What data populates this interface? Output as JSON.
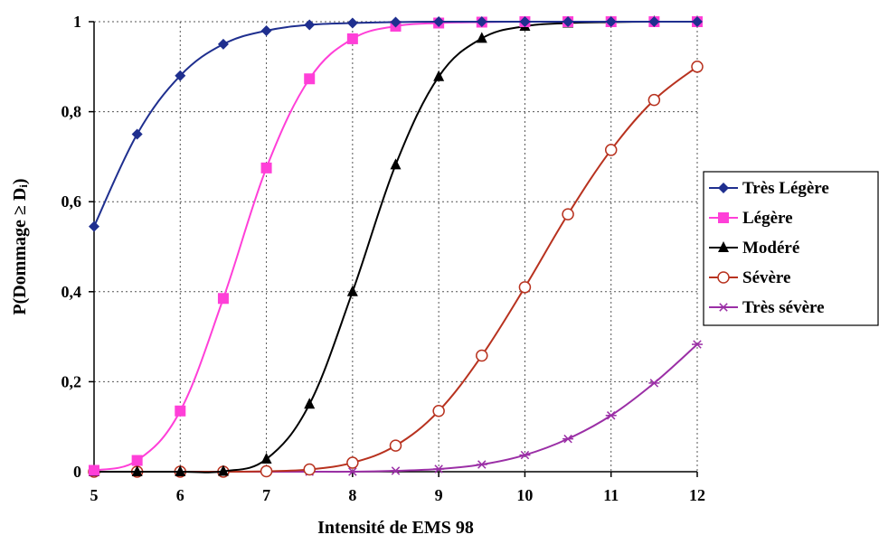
{
  "chart_data": {
    "type": "line",
    "xlabel": "Intensité de EMS 98",
    "ylabel": "P(Dommage ≥ Dᵢ)",
    "x": [
      5,
      5.5,
      6,
      6.5,
      7,
      7.5,
      8,
      8.5,
      9,
      9.5,
      10,
      10.5,
      11,
      11.5,
      12
    ],
    "xlim": [
      5,
      12
    ],
    "ylim": [
      0,
      1
    ],
    "x_ticks": [
      "5",
      "6",
      "7",
      "8",
      "9",
      "10",
      "11",
      "12"
    ],
    "y_ticks": [
      "0",
      "0,2",
      "0,4",
      "0,6",
      "0,8",
      "1"
    ],
    "grid": "dotted",
    "legend_position": "right",
    "series": [
      {
        "name": "Très Légère",
        "color": "#1f2f8f",
        "marker": "diamond",
        "values": [
          0.545,
          0.75,
          0.88,
          0.95,
          0.98,
          0.993,
          0.997,
          0.999,
          1,
          1,
          1,
          1,
          1,
          1,
          1
        ]
      },
      {
        "name": "Légère",
        "color": "#ff3fd8",
        "marker": "square",
        "values": [
          0.003,
          0.025,
          0.135,
          0.385,
          0.675,
          0.873,
          0.962,
          0.99,
          0.997,
          0.999,
          1,
          1,
          1,
          1,
          1
        ]
      },
      {
        "name": "Modéré",
        "color": "#000000",
        "marker": "triangle",
        "values": [
          0,
          0,
          0,
          0.001,
          0.028,
          0.15,
          0.4,
          0.682,
          0.878,
          0.963,
          0.99,
          0.997,
          0.999,
          1,
          1
        ]
      },
      {
        "name": "Sévère",
        "color": "#b8321f",
        "marker": "circle",
        "values": [
          0,
          0,
          0,
          0,
          0.001,
          0.005,
          0.02,
          0.058,
          0.135,
          0.258,
          0.41,
          0.572,
          0.715,
          0.826,
          0.9
        ]
      },
      {
        "name": "Très sévère",
        "color": "#9b2fa6",
        "marker": "star",
        "values": [
          0,
          0,
          0,
          0,
          0,
          0,
          0,
          0.002,
          0.006,
          0.016,
          0.037,
          0.073,
          0.125,
          0.197,
          0.283
        ]
      }
    ]
  }
}
